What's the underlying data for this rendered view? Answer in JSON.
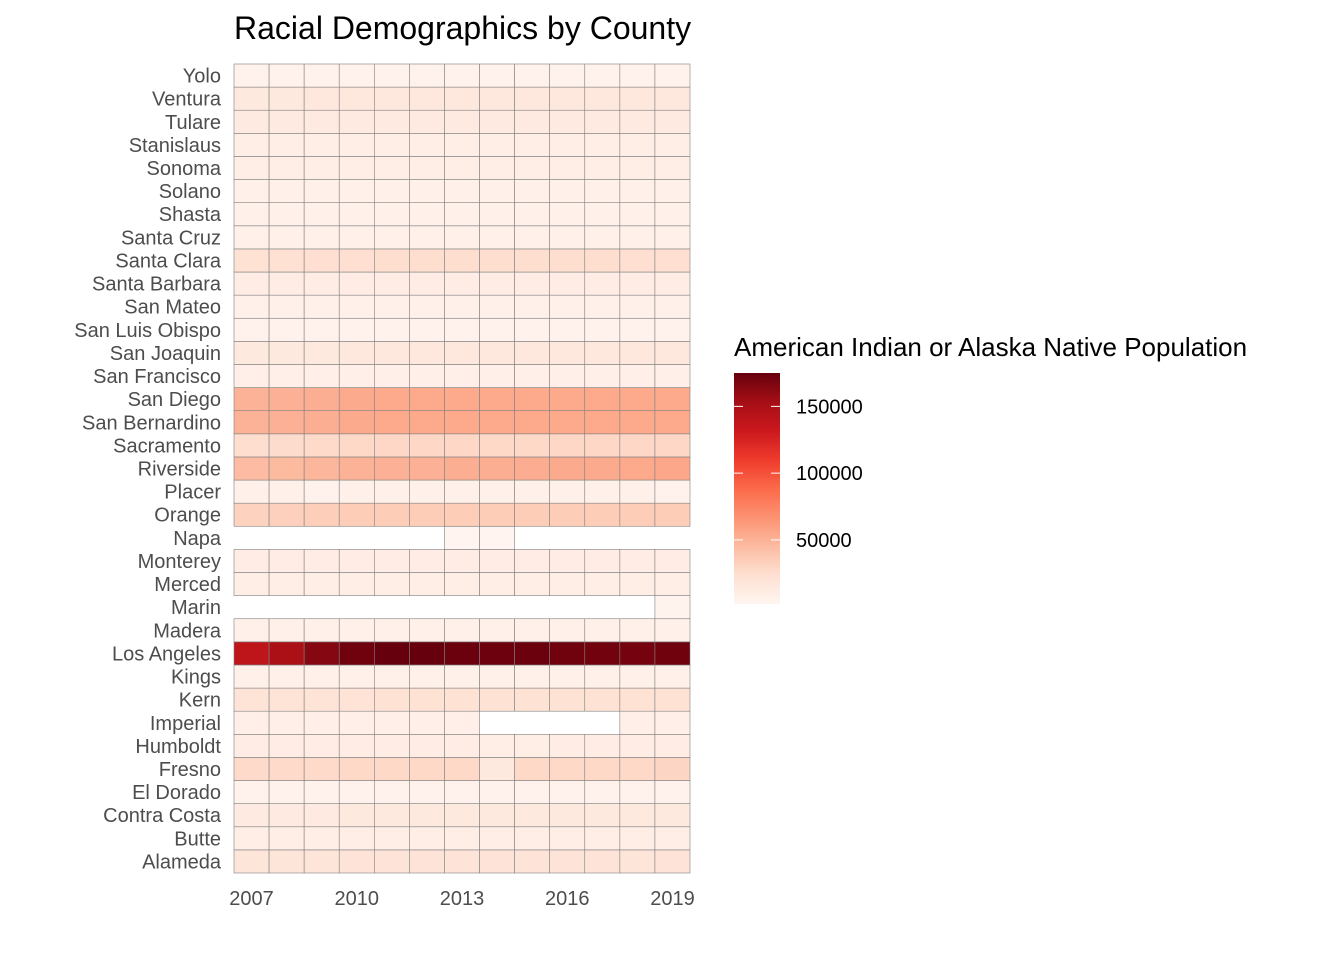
{
  "chart_data": {
    "type": "heatmap",
    "title": "Racial Demographics by County",
    "xlabel": "",
    "ylabel": "",
    "years": [
      2007,
      2008,
      2009,
      2010,
      2011,
      2012,
      2013,
      2014,
      2015,
      2016,
      2017,
      2018,
      2019
    ],
    "x_tick_labels": [
      "2007",
      "2010",
      "2013",
      "2016",
      "2019"
    ],
    "legend": {
      "title": "American Indian or Alaska Native Population",
      "ticks": [
        50000,
        100000,
        150000
      ],
      "tick_labels": [
        "50000",
        "100000",
        "150000"
      ],
      "min": 2000,
      "max": 175000,
      "low_color": "#fff5f0",
      "high_color": "#67000d",
      "placement": "right"
    },
    "tile_border_color": "#808080",
    "counties": [
      "Alameda",
      "Butte",
      "Contra Costa",
      "El Dorado",
      "Fresno",
      "Humboldt",
      "Imperial",
      "Kern",
      "Kings",
      "Los Angeles",
      "Madera",
      "Marin",
      "Merced",
      "Monterey",
      "Napa",
      "Orange",
      "Placer",
      "Riverside",
      "Sacramento",
      "San Bernardino",
      "San Diego",
      "San Francisco",
      "San Joaquin",
      "San Luis Obispo",
      "San Mateo",
      "Santa Barbara",
      "Santa Clara",
      "Santa Cruz",
      "Shasta",
      "Solano",
      "Sonoma",
      "Stanislaus",
      "Tulare",
      "Ventura",
      "Yolo"
    ],
    "values": [
      [
        18000,
        18000,
        18000,
        19000,
        19000,
        19000,
        19000,
        19000,
        19000,
        19000,
        19000,
        18000,
        19000
      ],
      [
        9000,
        9000,
        9000,
        9000,
        9000,
        9000,
        9000,
        9000,
        9000,
        9000,
        9000,
        9000,
        9000
      ],
      [
        13000,
        13000,
        13000,
        14000,
        14000,
        14000,
        14000,
        14000,
        14000,
        14000,
        14000,
        14000,
        14000
      ],
      [
        5000,
        5000,
        5000,
        5000,
        5000,
        5000,
        5000,
        5000,
        5000,
        5000,
        5000,
        5000,
        5000
      ],
      [
        27000,
        27000,
        27000,
        28000,
        28000,
        28000,
        28000,
        14000,
        28000,
        28000,
        28000,
        28000,
        30000
      ],
      [
        11000,
        11000,
        11000,
        11000,
        11000,
        11000,
        11000,
        9000,
        9000,
        10000,
        11000,
        11000,
        11000
      ],
      [
        8000,
        8000,
        8000,
        8000,
        8000,
        8000,
        8000,
        null,
        null,
        null,
        null,
        8000,
        8000
      ],
      [
        20000,
        20000,
        20000,
        21000,
        22000,
        22000,
        22000,
        22000,
        22000,
        22000,
        22000,
        22000,
        22000
      ],
      [
        7000,
        7000,
        7000,
        7000,
        7000,
        7000,
        7000,
        7000,
        7000,
        7000,
        7000,
        7000,
        7000
      ],
      [
        140000,
        150000,
        165000,
        172000,
        175000,
        175000,
        174000,
        173000,
        174000,
        172000,
        171000,
        170000,
        172000
      ],
      [
        7000,
        7000,
        7000,
        7000,
        7000,
        7000,
        7000,
        7000,
        7000,
        7000,
        7000,
        7000,
        7000
      ],
      [
        null,
        null,
        null,
        null,
        null,
        null,
        null,
        null,
        null,
        null,
        null,
        null,
        4000
      ],
      [
        9000,
        9000,
        9000,
        9000,
        9000,
        9000,
        9000,
        9000,
        9000,
        9000,
        9000,
        9000,
        9000
      ],
      [
        10000,
        10000,
        10000,
        10000,
        10000,
        10000,
        10000,
        10000,
        10000,
        10000,
        10000,
        10000,
        10000
      ],
      [
        null,
        null,
        null,
        null,
        null,
        null,
        3000,
        3000,
        null,
        null,
        null,
        null,
        null
      ],
      [
        32000,
        33000,
        34000,
        35000,
        35000,
        35000,
        35000,
        35000,
        35000,
        35000,
        35000,
        35000,
        35000
      ],
      [
        6000,
        6000,
        5000,
        6000,
        6000,
        6000,
        6000,
        6000,
        6000,
        6000,
        6000,
        6000,
        5000
      ],
      [
        45000,
        46000,
        48000,
        50000,
        51000,
        51000,
        52000,
        52000,
        53000,
        54000,
        54000,
        55000,
        56000
      ],
      [
        25000,
        26000,
        27000,
        28000,
        29000,
        29000,
        29000,
        28000,
        28000,
        29000,
        29000,
        29000,
        29000
      ],
      [
        50000,
        51000,
        52000,
        54000,
        55000,
        55000,
        55000,
        55000,
        55000,
        55000,
        55000,
        55000,
        55000
      ],
      [
        50000,
        51000,
        52000,
        54000,
        55000,
        55000,
        55000,
        55000,
        55000,
        55000,
        55000,
        55000,
        55000
      ],
      [
        8000,
        8000,
        8000,
        8000,
        8000,
        8000,
        8000,
        8000,
        8000,
        8000,
        8000,
        8000,
        8000
      ],
      [
        14000,
        14000,
        14000,
        15000,
        15000,
        15000,
        15000,
        15000,
        15000,
        15000,
        15000,
        15000,
        15000
      ],
      [
        5000,
        5000,
        5000,
        5000,
        5000,
        5000,
        5000,
        5000,
        5000,
        5000,
        5000,
        5000,
        5000
      ],
      [
        7000,
        7000,
        7000,
        7000,
        7000,
        7000,
        7000,
        7000,
        7000,
        7000,
        7000,
        7000,
        7000
      ],
      [
        10000,
        10000,
        10000,
        10000,
        10000,
        10000,
        10000,
        10000,
        10000,
        10000,
        10000,
        10000,
        10000
      ],
      [
        22000,
        23000,
        24000,
        24000,
        25000,
        25000,
        25000,
        25000,
        25000,
        25000,
        25000,
        24000,
        24000
      ],
      [
        6000,
        6000,
        6000,
        6000,
        6000,
        6000,
        6000,
        6000,
        6000,
        6000,
        6000,
        6000,
        6000
      ],
      [
        6000,
        6000,
        6000,
        6000,
        6000,
        6000,
        6000,
        6000,
        6000,
        6000,
        6000,
        6000,
        6000
      ],
      [
        6000,
        6000,
        6000,
        6000,
        6000,
        6000,
        6000,
        6000,
        6000,
        6000,
        6000,
        6000,
        6000
      ],
      [
        9000,
        9000,
        9000,
        9000,
        9000,
        9000,
        9000,
        9000,
        9000,
        9000,
        9000,
        9000,
        9000
      ],
      [
        9000,
        9000,
        9000,
        9000,
        9000,
        9000,
        9000,
        9000,
        9000,
        9000,
        9000,
        9000,
        9000
      ],
      [
        13000,
        13000,
        13000,
        13000,
        13000,
        13000,
        13000,
        13000,
        13000,
        13000,
        13000,
        13000,
        13000
      ],
      [
        14000,
        14000,
        15000,
        15000,
        15000,
        15000,
        15000,
        15000,
        15000,
        15000,
        15000,
        15000,
        15000
      ],
      [
        5000,
        5000,
        5000,
        5000,
        5000,
        5000,
        5000,
        5000,
        5000,
        5000,
        5000,
        5000,
        5000
      ]
    ]
  }
}
